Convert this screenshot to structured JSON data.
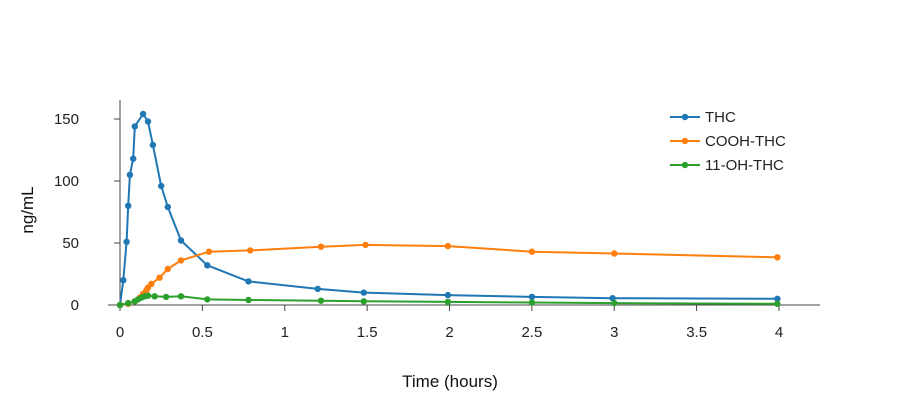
{
  "chart_data": {
    "type": "line",
    "title": "",
    "xlabel": "Time (hours)",
    "ylabel": "ng/mL",
    "xlim": [
      0,
      4.2
    ],
    "ylim": [
      -4,
      165
    ],
    "xticks": [
      0,
      0.5,
      1,
      1.5,
      2,
      2.5,
      3,
      3.5,
      4
    ],
    "xtick_labels": [
      "0",
      "0.5",
      "1",
      "1.5",
      "2",
      "2.5",
      "3",
      "3.5",
      "4"
    ],
    "yticks": [
      0,
      50,
      100,
      150
    ],
    "ytick_labels": [
      "0",
      "50",
      "100",
      "150"
    ],
    "grid": false,
    "legend_position": "top-right",
    "series": [
      {
        "name": "THC",
        "color": "#1f77b4",
        "x": [
          0,
          0.02,
          0.04,
          0.05,
          0.06,
          0.08,
          0.09,
          0.14,
          0.17,
          0.2,
          0.25,
          0.29,
          0.37,
          0.53,
          0.78,
          1.2,
          1.48,
          1.99,
          2.5,
          2.99,
          3.99
        ],
        "y": [
          0,
          20,
          51,
          80,
          105,
          118,
          144,
          154,
          148,
          129,
          96,
          79,
          52,
          32,
          19,
          13,
          10,
          8,
          6.5,
          5.5,
          5
        ]
      },
      {
        "name": "COOH-THC",
        "color": "#ff7f0e",
        "x": [
          0,
          0.05,
          0.09,
          0.12,
          0.14,
          0.16,
          0.17,
          0.19,
          0.24,
          0.29,
          0.37,
          0.54,
          0.79,
          1.22,
          1.49,
          1.99,
          2.5,
          3.0,
          3.99
        ],
        "y": [
          0,
          1,
          3,
          6,
          9,
          12,
          14,
          17,
          22,
          29,
          36,
          43,
          44,
          47,
          48.5,
          47.5,
          43,
          41.5,
          38.5
        ]
      },
      {
        "name": "11-OH-THC",
        "color": "#2ca02c",
        "x": [
          0,
          0.05,
          0.09,
          0.11,
          0.13,
          0.15,
          0.17,
          0.21,
          0.28,
          0.37,
          0.53,
          0.78,
          1.22,
          1.48,
          1.99,
          2.5,
          3.0,
          3.99
        ],
        "y": [
          0,
          1.5,
          3,
          4.5,
          6,
          7,
          7.5,
          7,
          6.5,
          7,
          4.5,
          4,
          3.5,
          3,
          2.5,
          2,
          1.5,
          1
        ]
      }
    ]
  }
}
